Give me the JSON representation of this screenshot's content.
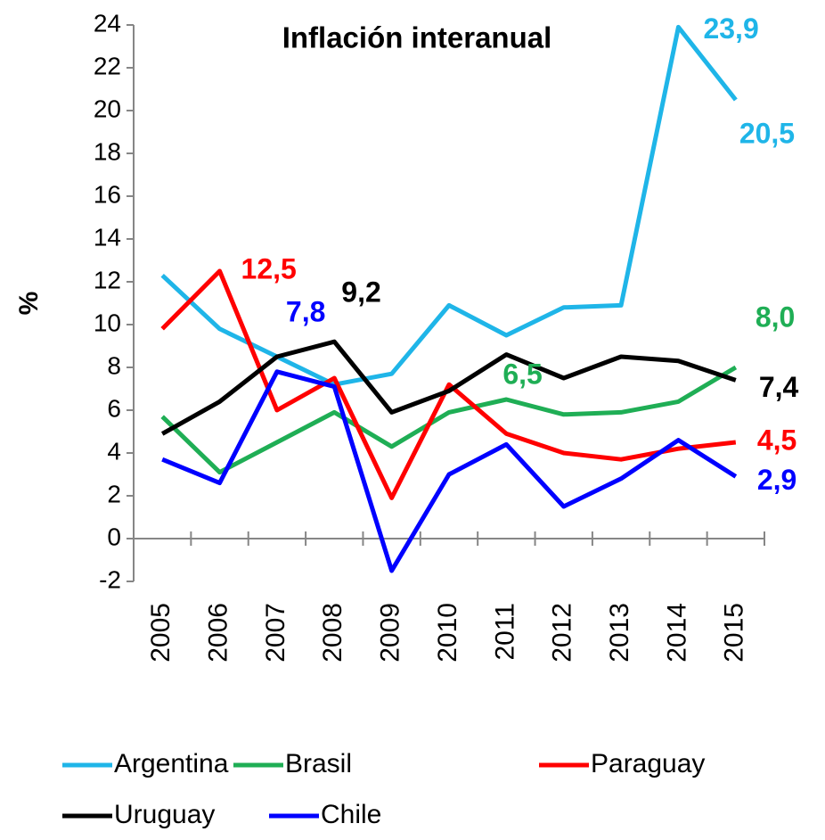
{
  "chart_data": {
    "type": "line",
    "title": "Inflación interanual",
    "y_label": "%",
    "categories": [
      "2005",
      "2006",
      "2007",
      "2008",
      "2009",
      "2010",
      "2011",
      "2012",
      "2013",
      "2014",
      "2015"
    ],
    "ylim": [
      -2,
      24
    ],
    "yticks": [
      -2,
      0,
      2,
      4,
      6,
      8,
      10,
      12,
      14,
      16,
      18,
      20,
      22,
      24
    ],
    "legend": "bottom",
    "series": [
      {
        "name": "Argentina",
        "color": "#1fb5e8",
        "values": [
          12.3,
          9.8,
          8.5,
          7.2,
          7.7,
          10.9,
          9.5,
          10.8,
          10.9,
          23.9,
          20.5
        ],
        "value_labels": [
          null,
          null,
          null,
          null,
          null,
          null,
          null,
          null,
          null,
          "23,9",
          "20,5"
        ]
      },
      {
        "name": "Brasil",
        "color": "#1fae55",
        "values": [
          5.7,
          3.1,
          4.5,
          5.9,
          4.3,
          5.9,
          6.5,
          5.8,
          5.9,
          6.4,
          8.0
        ],
        "value_labels": [
          null,
          null,
          null,
          null,
          null,
          null,
          "6,5",
          null,
          null,
          null,
          "8,0"
        ]
      },
      {
        "name": "Paraguay",
        "color": "#ff0000",
        "values": [
          9.8,
          12.5,
          6.0,
          7.5,
          1.9,
          7.2,
          4.9,
          4.0,
          3.7,
          4.2,
          4.5
        ],
        "value_labels": [
          null,
          "12,5",
          null,
          null,
          null,
          null,
          null,
          null,
          null,
          null,
          "4,5"
        ]
      },
      {
        "name": "Uruguay",
        "color": "#000000",
        "values": [
          4.9,
          6.4,
          8.5,
          9.2,
          5.9,
          6.9,
          8.6,
          7.5,
          8.5,
          8.3,
          7.4
        ],
        "value_labels": [
          null,
          null,
          null,
          "9,2",
          null,
          null,
          null,
          null,
          null,
          null,
          "7,4"
        ]
      },
      {
        "name": "Chile",
        "color": "#0000ff",
        "values": [
          3.7,
          2.6,
          7.8,
          7.1,
          -1.5,
          3.0,
          4.4,
          1.5,
          2.8,
          4.6,
          2.9
        ],
        "value_labels": [
          null,
          null,
          "7,8",
          null,
          null,
          null,
          null,
          null,
          null,
          null,
          "2,9"
        ]
      }
    ]
  }
}
